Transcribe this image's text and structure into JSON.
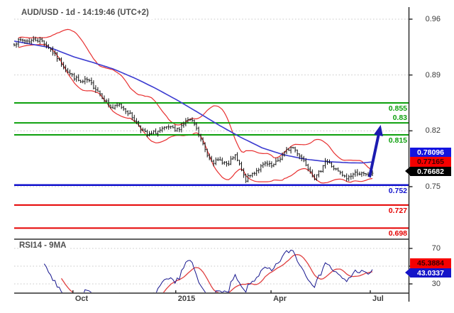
{
  "header": {
    "title": "AUD/USD - 1d - 14:19:46 (UTC+2)"
  },
  "colors": {
    "background": "#ffffff",
    "axis": "#2f2f2f",
    "grid": "#c9c9c9",
    "candle": "#141414",
    "bollinger_band": "#e83030",
    "ma_blue": "#3b3bd0",
    "level_green": "#0da00d",
    "level_red": "#e50000",
    "level_blue": "#1111cc",
    "rsi_line": "#16168e",
    "rsi_ma": "#e04040",
    "arrow_blue": "#1b1bb0"
  },
  "chart_data": [
    {
      "type": "candlestick",
      "title": "AUD/USD - 1d - 14:19:46 (UTC+2)",
      "symbol": "AUD/USD",
      "timeframe": "1d",
      "quote_time": "14:19:46 (UTC+2)",
      "y_axis": {
        "side": "right",
        "ticks": [
          {
            "value": 0.96,
            "label": "0.96"
          },
          {
            "value": 0.89,
            "label": "0.89"
          },
          {
            "value": 0.82,
            "label": "0.82"
          },
          {
            "value": 0.75,
            "label": "0.75"
          }
        ]
      },
      "x_axis": {
        "labels": [
          {
            "label": "Oct",
            "t": 0.164
          },
          {
            "label": "2015",
            "t": 0.451
          },
          {
            "label": "Apr",
            "t": 0.717
          },
          {
            "label": "Jul",
            "t": 0.994
          }
        ]
      },
      "levels": [
        {
          "value": 0.855,
          "label": "0.855",
          "color": "green",
          "label_side": "below"
        },
        {
          "value": 0.83,
          "label": "0.83",
          "color": "green",
          "label_side": "above"
        },
        {
          "value": 0.815,
          "label": "0.815",
          "color": "green",
          "label_side": "below"
        },
        {
          "value": 0.752,
          "label": "0.752",
          "color": "blue",
          "label_side": "below"
        },
        {
          "value": 0.727,
          "label": "0.727",
          "color": "red",
          "label_side": "below"
        },
        {
          "value": 0.698,
          "label": "0.698",
          "color": "red",
          "label_side": "below"
        }
      ],
      "price_tags": [
        {
          "label": "0.78096",
          "bg": "#1414e0",
          "fg": "#ffffff",
          "pointer": false
        },
        {
          "label": "0.77165",
          "bg": "#f50000",
          "fg": "#3c0000",
          "pointer": false
        },
        {
          "label": "0.76682",
          "bg": "#000000",
          "fg": "#ffffff",
          "pointer": true
        }
      ],
      "last_price": 0.76682,
      "series": {
        "close_anchors": [
          [
            0.0,
            0.93
          ],
          [
            0.02,
            0.9335
          ],
          [
            0.04,
            0.9325
          ],
          [
            0.059,
            0.9345
          ],
          [
            0.075,
            0.9335
          ],
          [
            0.085,
            0.93
          ],
          [
            0.099,
            0.9235
          ],
          [
            0.115,
            0.9145
          ],
          [
            0.135,
            0.903
          ],
          [
            0.154,
            0.892
          ],
          [
            0.168,
            0.887
          ],
          [
            0.188,
            0.88
          ],
          [
            0.202,
            0.884
          ],
          [
            0.218,
            0.8775
          ],
          [
            0.234,
            0.87
          ],
          [
            0.253,
            0.8585
          ],
          [
            0.273,
            0.848
          ],
          [
            0.293,
            0.8525
          ],
          [
            0.313,
            0.8455
          ],
          [
            0.333,
            0.8355
          ],
          [
            0.352,
            0.824
          ],
          [
            0.372,
            0.8135
          ],
          [
            0.392,
            0.818
          ],
          [
            0.412,
            0.821
          ],
          [
            0.432,
            0.8245
          ],
          [
            0.451,
            0.8195
          ],
          [
            0.471,
            0.8285
          ],
          [
            0.487,
            0.8345
          ],
          [
            0.503,
            0.828
          ],
          [
            0.519,
            0.811
          ],
          [
            0.539,
            0.79
          ],
          [
            0.558,
            0.781
          ],
          [
            0.578,
            0.783
          ],
          [
            0.598,
            0.7765
          ],
          [
            0.614,
            0.79
          ],
          [
            0.63,
            0.776
          ],
          [
            0.645,
            0.758
          ],
          [
            0.661,
            0.765
          ],
          [
            0.681,
            0.772
          ],
          [
            0.701,
            0.7785
          ],
          [
            0.721,
            0.775
          ],
          [
            0.741,
            0.785
          ],
          [
            0.76,
            0.795
          ],
          [
            0.776,
            0.8
          ],
          [
            0.792,
            0.792
          ],
          [
            0.808,
            0.783
          ],
          [
            0.824,
            0.772
          ],
          [
            0.84,
            0.76
          ],
          [
            0.855,
            0.77
          ],
          [
            0.867,
            0.783
          ],
          [
            0.879,
            0.779
          ],
          [
            0.895,
            0.772
          ],
          [
            0.911,
            0.766
          ],
          [
            0.927,
            0.76
          ],
          [
            0.943,
            0.765
          ],
          [
            0.958,
            0.768
          ],
          [
            0.974,
            0.765
          ],
          [
            0.986,
            0.764
          ],
          [
            1.0,
            0.76682
          ]
        ],
        "ma_blue_anchors": [
          [
            0.0,
            0.9325
          ],
          [
            0.099,
            0.9245
          ],
          [
            0.168,
            0.9125
          ],
          [
            0.218,
            0.906
          ],
          [
            0.277,
            0.8975
          ],
          [
            0.337,
            0.886
          ],
          [
            0.396,
            0.873
          ],
          [
            0.455,
            0.8585
          ],
          [
            0.515,
            0.8425
          ],
          [
            0.574,
            0.8265
          ],
          [
            0.634,
            0.8115
          ],
          [
            0.693,
            0.7985
          ],
          [
            0.752,
            0.79
          ],
          [
            0.812,
            0.7845
          ],
          [
            0.871,
            0.7815
          ],
          [
            0.931,
            0.78
          ],
          [
            0.97,
            0.7797
          ],
          [
            1.0,
            0.781
          ]
        ],
        "bollinger": {
          "window": 18,
          "mult": 2
        },
        "bars": 168
      },
      "annotation_arrow": {
        "from_t": 0.992,
        "from_price": 0.762,
        "to_t": 1.023,
        "to_price": 0.8274
      }
    },
    {
      "type": "line",
      "label": "RSI14 - 9MA",
      "y_axis": {
        "side": "right",
        "tick_labels": [
          {
            "value": 70,
            "label": "70"
          },
          {
            "value": 30,
            "label": "30"
          }
        ],
        "grid_values": [
          70,
          50,
          30
        ]
      },
      "rsi_tags": [
        {
          "label": "45.3884",
          "bg": "#f50000",
          "fg": "#3c0000",
          "pointer": false
        },
        {
          "label": "43.0337",
          "bg": "#1414c8",
          "fg": "#ffffff",
          "pointer": true
        }
      ],
      "rsi_period": 14,
      "ma_period": 9,
      "last_rsi": 43.0337,
      "last_rsi_ma": 45.3884
    }
  ]
}
